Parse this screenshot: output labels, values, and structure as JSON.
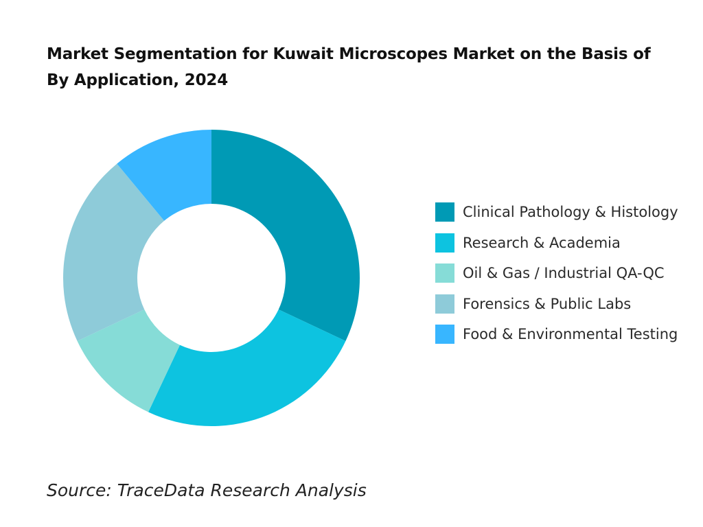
{
  "chart_data": {
    "type": "pie",
    "title": "Market Segmentation for Kuwait Microscopes Market on the Basis of By Application, 2024",
    "categories": [
      "Clinical Pathology & Histology",
      "Research & Academia",
      "Oil & Gas / Industrial QA-QC",
      "Forensics & Public Labs",
      "Food & Environmental Testing"
    ],
    "values": [
      32,
      25,
      11,
      21,
      11
    ],
    "colors": [
      "#009ab5",
      "#0dc3e0",
      "#86dcd7",
      "#8ecbd9",
      "#38b6ff"
    ],
    "donut": true,
    "legend_position": "right"
  },
  "source": "Source: TraceData Research Analysis"
}
